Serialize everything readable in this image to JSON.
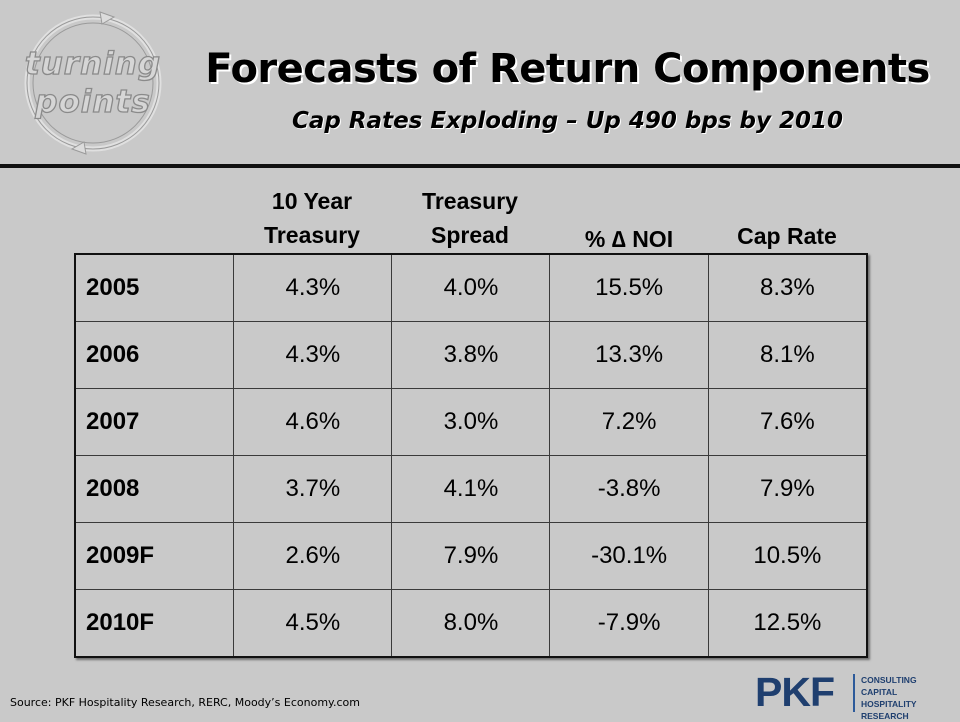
{
  "logo": {
    "line1": "turning",
    "line2": "points"
  },
  "title": "Forecasts of Return Components",
  "subtitle": "Cap Rates Exploding – Up 490 bps by 2010",
  "columns": [
    {
      "line1": "10 Year",
      "line2": "Treasury"
    },
    {
      "line1": "Treasury",
      "line2": "Spread"
    },
    {
      "line1": "",
      "line2": "% ∆ NOI"
    },
    {
      "line1": "",
      "line2": "Cap Rate"
    }
  ],
  "rows": [
    {
      "year": "2005",
      "treasury": "4.3%",
      "spread": "4.0%",
      "noi": "15.5%",
      "cap": "8.3%"
    },
    {
      "year": "2006",
      "treasury": "4.3%",
      "spread": "3.8%",
      "noi": "13.3%",
      "cap": "8.1%"
    },
    {
      "year": "2007",
      "treasury": "4.6%",
      "spread": "3.0%",
      "noi": "7.2%",
      "cap": "7.6%"
    },
    {
      "year": "2008",
      "treasury": "3.7%",
      "spread": "4.1%",
      "noi": "-3.8%",
      "cap": "7.9%"
    },
    {
      "year": "2009F",
      "treasury": "2.6%",
      "spread": "7.9%",
      "noi": "-30.1%",
      "cap": "10.5%"
    },
    {
      "year": "2010F",
      "treasury": "4.5%",
      "spread": "8.0%",
      "noi": "-7.9%",
      "cap": "12.5%"
    }
  ],
  "source": "Source: PKF Hospitality Research,  RERC, Moody’s Economy.com",
  "brand": {
    "name": "PKF",
    "lines": [
      "CONSULTING",
      "CAPITAL",
      "HOSPITALITY RESEARCH"
    ]
  },
  "colors": {
    "background": "#c9c9c9",
    "brand": "#1f3f6f"
  }
}
